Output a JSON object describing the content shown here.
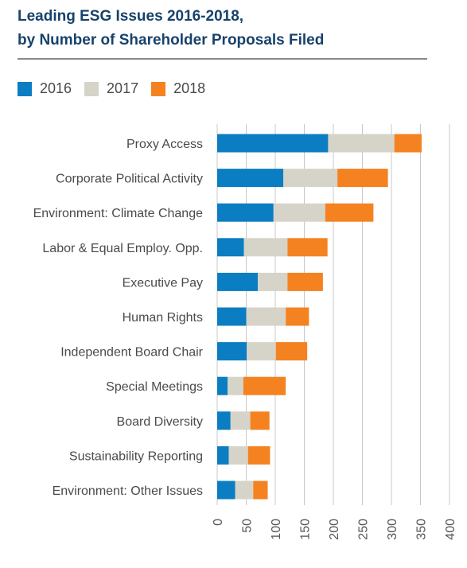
{
  "title_line1": "Leading ESG Issues 2016-2018,",
  "title_line2": "by Number of Shareholder Proposals Filed",
  "colors": {
    "2016": "#0b7dc2",
    "2017": "#d6d3c9",
    "2018": "#f58220",
    "title": "#17426b",
    "grid": "#c8c8c8"
  },
  "chart_data": {
    "type": "bar",
    "orientation": "horizontal",
    "stacked": true,
    "title": "Leading ESG Issues 2016-2018, by Number of Shareholder Proposals Filed",
    "xlabel": "",
    "ylabel": "",
    "xlim": [
      0,
      400
    ],
    "xticks": [
      0,
      50,
      100,
      150,
      200,
      250,
      300,
      350,
      400
    ],
    "grid": true,
    "legend": "top-left",
    "categories": [
      "Proxy Access",
      "Corporate Political Activity",
      "Environment: Climate Change",
      "Labor & Equal Employ. Opp.",
      "Executive Pay",
      "Human Rights",
      "Independent Board Chair",
      "Special Meetings",
      "Board Diversity",
      "Sustainability Reporting",
      "Environment: Other Issues"
    ],
    "series": [
      {
        "name": "2016",
        "values": [
          191,
          114,
          97,
          46,
          70,
          50,
          51,
          18,
          23,
          20,
          31
        ]
      },
      {
        "name": "2017",
        "values": [
          114,
          93,
          89,
          75,
          51,
          68,
          50,
          27,
          34,
          33,
          31
        ]
      },
      {
        "name": "2018",
        "values": [
          47,
          87,
          83,
          69,
          61,
          40,
          54,
          73,
          33,
          38,
          25
        ]
      }
    ]
  }
}
